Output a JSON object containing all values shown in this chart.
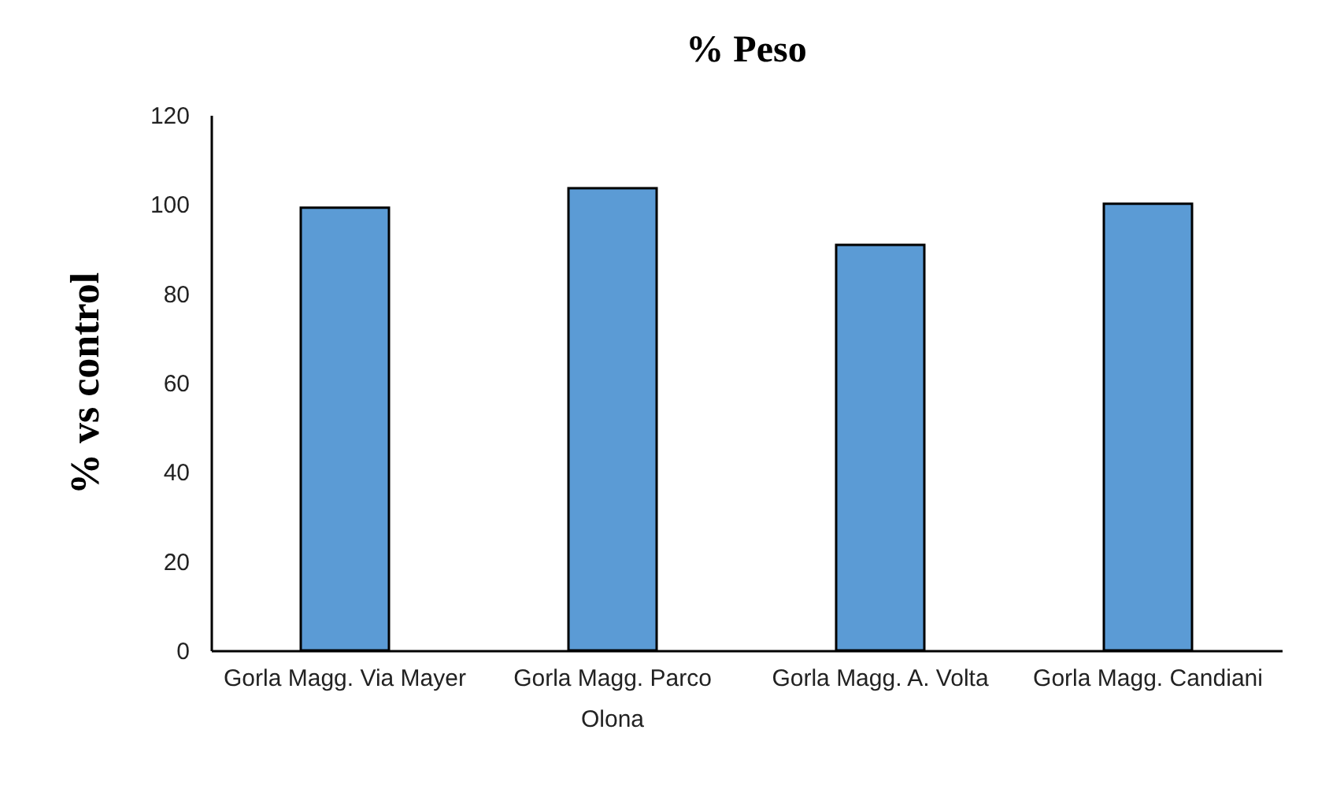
{
  "chart_data": {
    "type": "bar",
    "title": "% Peso",
    "ylabel": "% vs control",
    "categories": [
      "Gorla Magg. Via Mayer",
      "Gorla Magg. Parco Olona",
      "Gorla Magg. A. Volta",
      "Gorla Magg. Candiani"
    ],
    "values": [
      99.2,
      103.6,
      90.9,
      100.1
    ],
    "color": "#5b9bd5",
    "ylim": [
      0,
      120
    ],
    "yticks": [
      0,
      20,
      40,
      60,
      80,
      100,
      120
    ],
    "grid": false,
    "legend": false
  }
}
